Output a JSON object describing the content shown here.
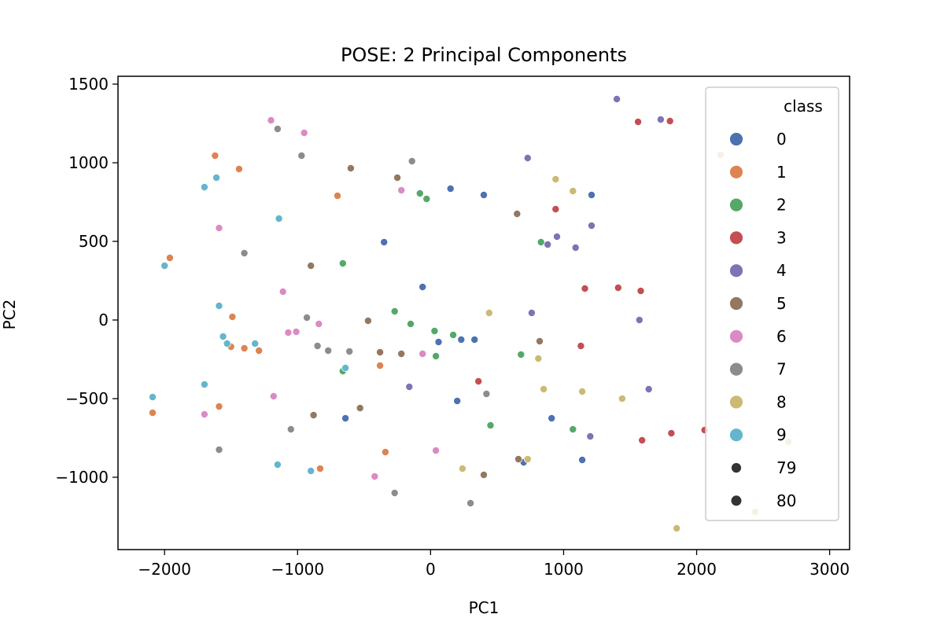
{
  "chart_data": {
    "type": "scatter",
    "title": "POSE: 2 Principal Components",
    "xlabel": "PC1",
    "ylabel": "PC2",
    "xlim": [
      -2350,
      3150
    ],
    "ylim": [
      -1460,
      1550
    ],
    "xticks": [
      -2000,
      -1000,
      0,
      1000,
      2000,
      3000
    ],
    "yticks": [
      -1000,
      -500,
      0,
      500,
      1000,
      1500
    ],
    "xtick_labels": [
      "−2000",
      "−1000",
      "0",
      "1000",
      "2000",
      "3000"
    ],
    "ytick_labels": [
      "−1000",
      "−500",
      "0",
      "500",
      "1000",
      "1500"
    ],
    "grid": false,
    "legend": {
      "title": "class",
      "placement": "upper right",
      "hue_entries": [
        "0",
        "1",
        "2",
        "3",
        "4",
        "5",
        "6",
        "7",
        "8",
        "9"
      ],
      "size_entries": [
        "79",
        "80"
      ]
    },
    "colors": {
      "0": "#4c72b0",
      "1": "#dd8452",
      "2": "#55a868",
      "3": "#c44e52",
      "4": "#8172b3",
      "5": "#937860",
      "6": "#da8bc3",
      "7": "#8c8c8c",
      "8": "#ccb974",
      "9": "#64b5cd",
      "size_marker": "#333333"
    },
    "series": [
      {
        "name": "0",
        "points": [
          [
            150,
            835
          ],
          [
            400,
            795
          ],
          [
            1210,
            795
          ],
          [
            -350,
            495
          ],
          [
            -60,
            210
          ],
          [
            230,
            -125
          ],
          [
            330,
            -125
          ],
          [
            60,
            -140
          ],
          [
            200,
            -515
          ],
          [
            910,
            -625
          ],
          [
            -640,
            -625
          ],
          [
            700,
            -905
          ],
          [
            1140,
            -890
          ]
        ]
      },
      {
        "name": "1",
        "points": [
          [
            -1620,
            1045
          ],
          [
            -1440,
            960
          ],
          [
            -700,
            790
          ],
          [
            -1960,
            395
          ],
          [
            -1490,
            20
          ],
          [
            -1400,
            -180
          ],
          [
            -1290,
            -195
          ],
          [
            -1500,
            -170
          ],
          [
            -380,
            -290
          ],
          [
            -1590,
            -550
          ],
          [
            -2090,
            -590
          ],
          [
            -340,
            -840
          ],
          [
            -830,
            -945
          ]
        ]
      },
      {
        "name": "2",
        "points": [
          [
            -80,
            805
          ],
          [
            -30,
            770
          ],
          [
            830,
            495
          ],
          [
            -660,
            360
          ],
          [
            -270,
            55
          ],
          [
            -150,
            -25
          ],
          [
            30,
            -70
          ],
          [
            170,
            -95
          ],
          [
            40,
            -230
          ],
          [
            680,
            -220
          ],
          [
            -660,
            -325
          ],
          [
            450,
            -670
          ],
          [
            1070,
            -695
          ]
        ]
      },
      {
        "name": "3",
        "points": [
          [
            1560,
            1260
          ],
          [
            1800,
            1265
          ],
          [
            940,
            705
          ],
          [
            1160,
            200
          ],
          [
            1410,
            205
          ],
          [
            1580,
            185
          ],
          [
            1130,
            -165
          ],
          [
            360,
            -390
          ],
          [
            1810,
            -720
          ],
          [
            2060,
            -700
          ],
          [
            1590,
            -765
          ]
        ]
      },
      {
        "name": "4",
        "points": [
          [
            1400,
            1405
          ],
          [
            1730,
            1275
          ],
          [
            730,
            1030
          ],
          [
            1210,
            600
          ],
          [
            950,
            530
          ],
          [
            880,
            480
          ],
          [
            1090,
            460
          ],
          [
            760,
            45
          ],
          [
            1570,
            0
          ],
          [
            -160,
            -425
          ],
          [
            1640,
            -440
          ],
          [
            1200,
            -740
          ]
        ]
      },
      {
        "name": "5",
        "points": [
          [
            -600,
            965
          ],
          [
            -250,
            905
          ],
          [
            650,
            675
          ],
          [
            -900,
            345
          ],
          [
            -470,
            -5
          ],
          [
            -380,
            -205
          ],
          [
            -220,
            -215
          ],
          [
            820,
            -135
          ],
          [
            -530,
            -560
          ],
          [
            -880,
            -605
          ],
          [
            660,
            -885
          ],
          [
            400,
            -985
          ]
        ]
      },
      {
        "name": "6",
        "points": [
          [
            -1200,
            1270
          ],
          [
            -950,
            1190
          ],
          [
            -220,
            825
          ],
          [
            -1590,
            585
          ],
          [
            -1110,
            180
          ],
          [
            -840,
            -25
          ],
          [
            -1070,
            -80
          ],
          [
            -1010,
            -75
          ],
          [
            -60,
            -215
          ],
          [
            -1180,
            -485
          ],
          [
            -1700,
            -600
          ],
          [
            40,
            -830
          ],
          [
            -420,
            -995
          ]
        ]
      },
      {
        "name": "7",
        "points": [
          [
            -1150,
            1215
          ],
          [
            -970,
            1045
          ],
          [
            -140,
            1010
          ],
          [
            -1400,
            425
          ],
          [
            -930,
            15
          ],
          [
            -850,
            -165
          ],
          [
            -770,
            -195
          ],
          [
            -610,
            -200
          ],
          [
            420,
            -470
          ],
          [
            -1050,
            -695
          ],
          [
            -1590,
            -825
          ],
          [
            -270,
            -1100
          ],
          [
            300,
            -1165
          ]
        ]
      },
      {
        "name": "8",
        "points": [
          [
            940,
            895
          ],
          [
            1070,
            820
          ],
          [
            2180,
            1050
          ],
          [
            440,
            45
          ],
          [
            810,
            -245
          ],
          [
            850,
            -440
          ],
          [
            1140,
            -455
          ],
          [
            1440,
            -500
          ],
          [
            240,
            -945
          ],
          [
            730,
            -885
          ],
          [
            2690,
            -775
          ],
          [
            2440,
            -1220
          ],
          [
            1850,
            -1325
          ]
        ]
      },
      {
        "name": "9",
        "points": [
          [
            -1700,
            845
          ],
          [
            -1610,
            905
          ],
          [
            -1140,
            645
          ],
          [
            -2000,
            345
          ],
          [
            -1590,
            90
          ],
          [
            -1560,
            -105
          ],
          [
            -1530,
            -150
          ],
          [
            -1320,
            -150
          ],
          [
            -640,
            -305
          ],
          [
            -2090,
            -490
          ],
          [
            -1700,
            -410
          ],
          [
            -1150,
            -920
          ],
          [
            -900,
            -960
          ]
        ]
      }
    ]
  }
}
